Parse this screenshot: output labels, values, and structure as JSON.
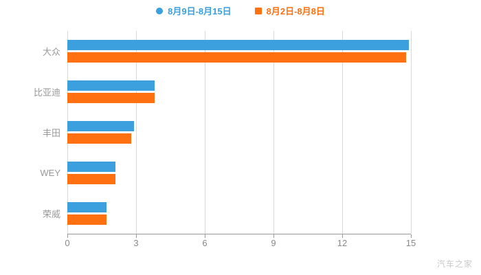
{
  "chart_data": {
    "type": "bar",
    "orientation": "horizontal",
    "title": "",
    "categories": [
      "大众",
      "比亚迪",
      "丰田",
      "WEY",
      "荣威"
    ],
    "series": [
      {
        "name": "8月9日-8月15日",
        "color": "#3ba0dd",
        "values": [
          14.9,
          3.8,
          2.9,
          2.1,
          1.7
        ]
      },
      {
        "name": "8月2日-8月8日",
        "color": "#ff7010",
        "values": [
          14.8,
          3.8,
          2.8,
          2.1,
          1.7
        ]
      }
    ],
    "xlabel": "",
    "ylabel": "",
    "xlim": [
      0,
      15
    ],
    "xticks": [
      0,
      3,
      6,
      9,
      12,
      15
    ],
    "grid": true,
    "legend_position": "top"
  },
  "watermark": "汽车之家"
}
